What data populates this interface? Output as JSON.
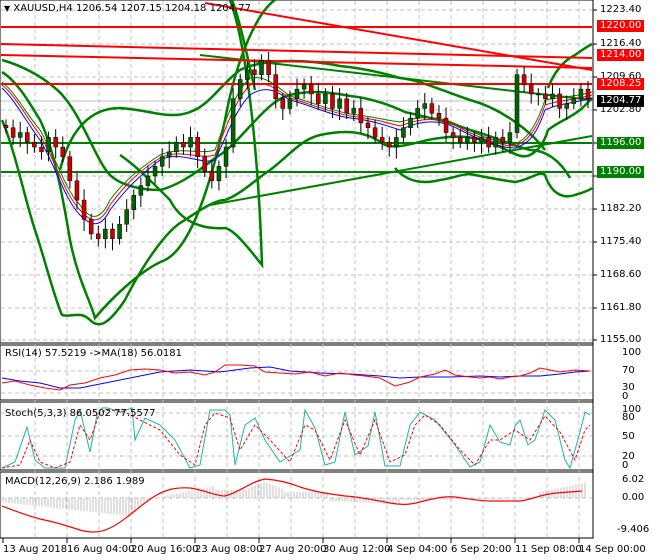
{
  "header": {
    "symbol_label": "XAUUSD,H4",
    "ohlc": "1206.54 1207.15 1204.18 1204.77"
  },
  "price_axis": {
    "ticks": [
      "1223.40",
      "1216.40",
      "1209.60",
      "1202.80",
      "1196.00",
      "1189.20",
      "1182.20",
      "1175.40",
      "1168.60",
      "1161.80",
      "1155.00"
    ],
    "tags": [
      {
        "label": "1220.00",
        "color": "#ff0000"
      },
      {
        "label": "1214.00",
        "color": "#ff0000"
      },
      {
        "label": "1208.25",
        "color": "#ff0000"
      },
      {
        "label": "1204.77",
        "color": "#000000"
      },
      {
        "label": "1196.00",
        "color": "#008000"
      },
      {
        "label": "1190.00",
        "color": "#008000"
      }
    ]
  },
  "rsi": {
    "label": "RSI(14) 57.5219  ->MA(18) 56.0181",
    "ticks": [
      "100",
      "70",
      "30",
      "0"
    ]
  },
  "stoch": {
    "label": "Stoch(5,3,3) 86.0502 77.5577",
    "ticks": [
      "100",
      "80",
      "50",
      "20",
      "0"
    ]
  },
  "macd": {
    "label": "MACD(12,26,9) 2.186 1.989",
    "ticks": [
      "6.02",
      "0.00",
      "-9.406"
    ]
  },
  "time_axis": {
    "labels": [
      "13 Aug 2018",
      "16 Aug 04:00",
      "20 Aug 16:00",
      "23 Aug 08:00",
      "27 Aug 20:00",
      "30 Aug 12:00",
      "4 Sep 04:00",
      "6 Sep 20:00",
      "11 Sep 08:00",
      "14 Sep 00:00"
    ]
  },
  "colors": {
    "support": "#008000",
    "resistance": "#ff0000",
    "bull_candle": "#006400",
    "bear_candle": "#cc0000",
    "rsi_line": "#ff0000",
    "rsi_ma": "#0000ff",
    "stoch_main": "#20b2aa",
    "stoch_signal": "#ff0000",
    "macd_signal": "#ff0000",
    "macd_hist": "#c0c0c0"
  },
  "chart_data": {
    "type": "candlestick",
    "title": "XAUUSD,H4",
    "symbol": "XAUUSD",
    "timeframe": "H4",
    "last_ohlc": {
      "open": 1206.54,
      "high": 1207.15,
      "low": 1204.18,
      "close": 1204.77
    },
    "ylim": [
      1155.0,
      1223.4
    ],
    "x_tick_labels": [
      "13 Aug 2018",
      "16 Aug 04:00",
      "20 Aug 16:00",
      "23 Aug 08:00",
      "27 Aug 20:00",
      "30 Aug 12:00",
      "4 Sep 04:00",
      "6 Sep 20:00",
      "11 Sep 08:00",
      "14 Sep 00:00"
    ],
    "horizontal_levels": [
      {
        "price": 1220.0,
        "type": "resistance",
        "color": "#ff0000"
      },
      {
        "price": 1214.0,
        "type": "resistance",
        "color": "#ff0000"
      },
      {
        "price": 1208.25,
        "type": "resistance",
        "color": "#ff0000"
      },
      {
        "price": 1196.0,
        "type": "support",
        "color": "#008000"
      },
      {
        "price": 1190.0,
        "type": "support",
        "color": "#008000"
      }
    ],
    "current_price": 1204.77,
    "approx_close_series": [
      1199,
      1197,
      1198,
      1196,
      1195,
      1194,
      1197,
      1195,
      1193,
      1188,
      1184,
      1180,
      1177,
      1176,
      1178,
      1176,
      1179,
      1182,
      1185,
      1187,
      1189,
      1191,
      1193,
      1194,
      1196,
      1195,
      1197,
      1193,
      1190,
      1188,
      1191,
      1195,
      1205,
      1209,
      1211,
      1210,
      1213,
      1210,
      1205,
      1203,
      1205,
      1207,
      1208,
      1206,
      1204,
      1206,
      1203,
      1205,
      1202,
      1203,
      1200,
      1199,
      1197,
      1196,
      1195,
      1197,
      1199,
      1201,
      1203,
      1204,
      1202,
      1201,
      1198,
      1197,
      1196,
      1197,
      1196,
      1197,
      1195,
      1197,
      1196,
      1198,
      1210,
      1208,
      1206,
      1206,
      1205,
      1206,
      1203,
      1204,
      1205,
      1207,
      1205
    ],
    "indicators": [
      {
        "name": "RSI(14)",
        "value": 57.5219,
        "ma_name": "MA(18)",
        "ma_value": 56.0181,
        "levels": [
          0,
          30,
          70,
          100
        ]
      },
      {
        "name": "Stoch(5,3,3)",
        "main": 86.0502,
        "signal": 77.5577,
        "levels": [
          0,
          20,
          50,
          80,
          100
        ]
      },
      {
        "name": "MACD(12,26,9)",
        "macd": 2.186,
        "signal": 1.989,
        "ylim": [
          -9.406,
          6.02
        ]
      }
    ],
    "overlays": [
      "Bollinger Bands (green)",
      "Moving averages (red, blue, green)",
      "Trendlines"
    ]
  }
}
